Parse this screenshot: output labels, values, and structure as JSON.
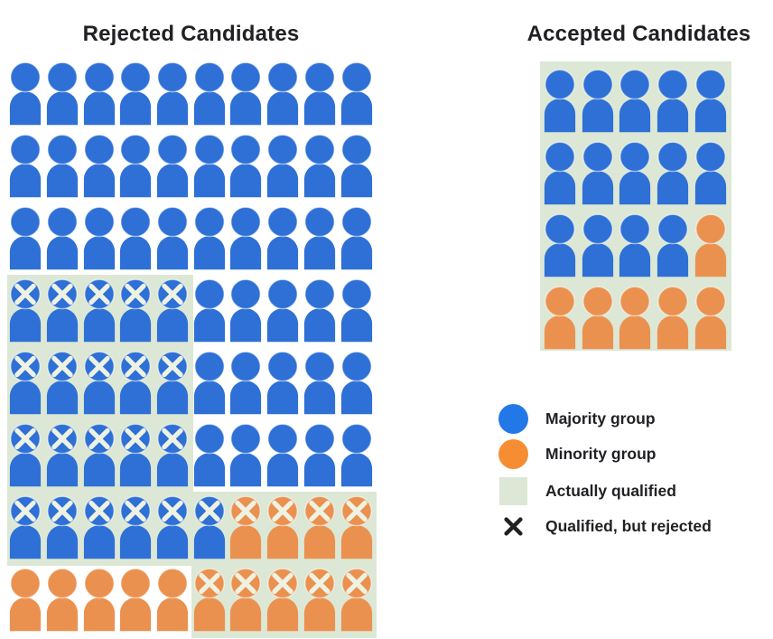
{
  "chart_data": {
    "type": "pictograph",
    "panels": [
      {
        "id": "rejected",
        "title": "Rejected Candidates",
        "columns": 10,
        "rows": [
          [
            "B",
            "B",
            "B",
            "B",
            "B",
            "B",
            "B",
            "B",
            "B",
            "B"
          ],
          [
            "B",
            "B",
            "B",
            "B",
            "B",
            "B",
            "B",
            "B",
            "B",
            "B"
          ],
          [
            "B",
            "B",
            "B",
            "B",
            "B",
            "B",
            "B",
            "B",
            "B",
            "B"
          ],
          [
            "Bx",
            "Bx",
            "Bx",
            "Bx",
            "Bx",
            "B",
            "B",
            "B",
            "B",
            "B"
          ],
          [
            "Bx",
            "Bx",
            "Bx",
            "Bx",
            "Bx",
            "B",
            "B",
            "B",
            "B",
            "B"
          ],
          [
            "Bx",
            "Bx",
            "Bx",
            "Bx",
            "Bx",
            "B",
            "B",
            "B",
            "B",
            "B"
          ],
          [
            "Bx",
            "Bx",
            "Bx",
            "Bx",
            "Bx",
            "Bx",
            "Ox",
            "Ox",
            "Ox",
            "Ox"
          ],
          [
            "O",
            "O",
            "O",
            "O",
            "O",
            "Ox",
            "Ox",
            "Ox",
            "Ox",
            "Ox"
          ]
        ],
        "qualified_regions": [
          {
            "rows": [
              4,
              6
            ],
            "cols": [
              1,
              5
            ]
          },
          {
            "rows": [
              7,
              7
            ],
            "cols": [
              1,
              10
            ]
          },
          {
            "rows": [
              8,
              8
            ],
            "cols": [
              6,
              10
            ]
          }
        ]
      },
      {
        "id": "accepted",
        "title": "Accepted Candidates",
        "columns": 5,
        "all_qualified": true,
        "rows": [
          [
            "B",
            "B",
            "B",
            "B",
            "B"
          ],
          [
            "B",
            "B",
            "B",
            "B",
            "B"
          ],
          [
            "B",
            "B",
            "B",
            "B",
            "O"
          ],
          [
            "O",
            "O",
            "O",
            "O",
            "O"
          ]
        ]
      }
    ],
    "cell_codes": {
      "B": "majority group person",
      "O": "minority group person",
      "x": "has X mark (qualified, but rejected)"
    },
    "legend": [
      {
        "label": "Majority group",
        "swatch": "blue-circle"
      },
      {
        "label": "Minority group",
        "swatch": "orange-circle"
      },
      {
        "label": "Actually qualified",
        "swatch": "green-square"
      },
      {
        "label": "Qualified, but rejected",
        "swatch": "black-x"
      }
    ],
    "colors": {
      "majority": "#2E70D6",
      "minority": "#EB9150",
      "qualified_bg": "#DCE8D5",
      "x_mark": "#EDF2E2",
      "legend_majority": "#2378E8",
      "legend_minority": "#F68D33",
      "text": "#202124"
    },
    "summary": {
      "rejected": {
        "total": 80,
        "majority": 66,
        "minority": 14,
        "qualified_but_rejected": {
          "total": 30,
          "majority": 21,
          "minority": 9
        }
      },
      "accepted": {
        "total": 20,
        "majority": 14,
        "minority": 6,
        "all_qualified": true
      }
    }
  }
}
